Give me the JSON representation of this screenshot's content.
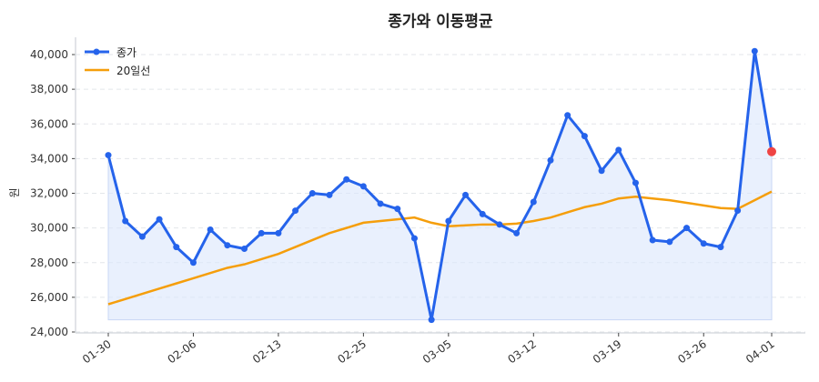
{
  "chart_data": {
    "type": "line",
    "title": "종가와 이동평균",
    "xlabel": "",
    "ylabel": "원",
    "ylim": [
      24000,
      41000
    ],
    "yticks": [
      24000,
      26000,
      28000,
      30000,
      32000,
      34000,
      36000,
      38000,
      40000
    ],
    "ytick_labels": [
      "24,000",
      "26,000",
      "28,000",
      "30,000",
      "32,000",
      "34,000",
      "36,000",
      "38,000",
      "40,000"
    ],
    "xticks": [
      {
        "index": 0,
        "label": "01-30"
      },
      {
        "index": 5,
        "label": "02-06"
      },
      {
        "index": 10,
        "label": "02-13"
      },
      {
        "index": 15,
        "label": "02-25"
      },
      {
        "index": 20,
        "label": "03-05"
      },
      {
        "index": 25,
        "label": "03-12"
      },
      {
        "index": 30,
        "label": "03-19"
      },
      {
        "index": 35,
        "label": "03-26"
      },
      {
        "index": 39,
        "label": "04-01"
      }
    ],
    "grid": "horizontal dashed",
    "legend_position": "top-left",
    "series": [
      {
        "name": "종가",
        "color": "#2563eb",
        "markers": true,
        "fill": "#dbe6fb",
        "values": [
          34200,
          30400,
          29500,
          30500,
          28900,
          28000,
          29900,
          29000,
          28800,
          29700,
          29700,
          31000,
          32000,
          31900,
          32800,
          32400,
          31400,
          31100,
          29400,
          24700,
          30400,
          31900,
          30800,
          30200,
          29700,
          31500,
          33900,
          36500,
          35300,
          33300,
          34500,
          32600,
          29300,
          29200,
          30000,
          29100,
          28900,
          31000,
          40200,
          34400
        ]
      },
      {
        "name": "20일선",
        "color": "#f59e0b",
        "markers": false,
        "values": [
          25600,
          25900,
          26200,
          26500,
          26800,
          27100,
          27400,
          27700,
          27900,
          28200,
          28500,
          28900,
          29300,
          29700,
          30000,
          30300,
          30400,
          30500,
          30600,
          30300,
          30100,
          30150,
          30200,
          30200,
          30250,
          30400,
          30600,
          30900,
          31200,
          31400,
          31700,
          31800,
          31700,
          31600,
          31450,
          31300,
          31150,
          31100,
          31600,
          32100
        ]
      }
    ],
    "last_point_highlight_color": "#ef4444"
  }
}
